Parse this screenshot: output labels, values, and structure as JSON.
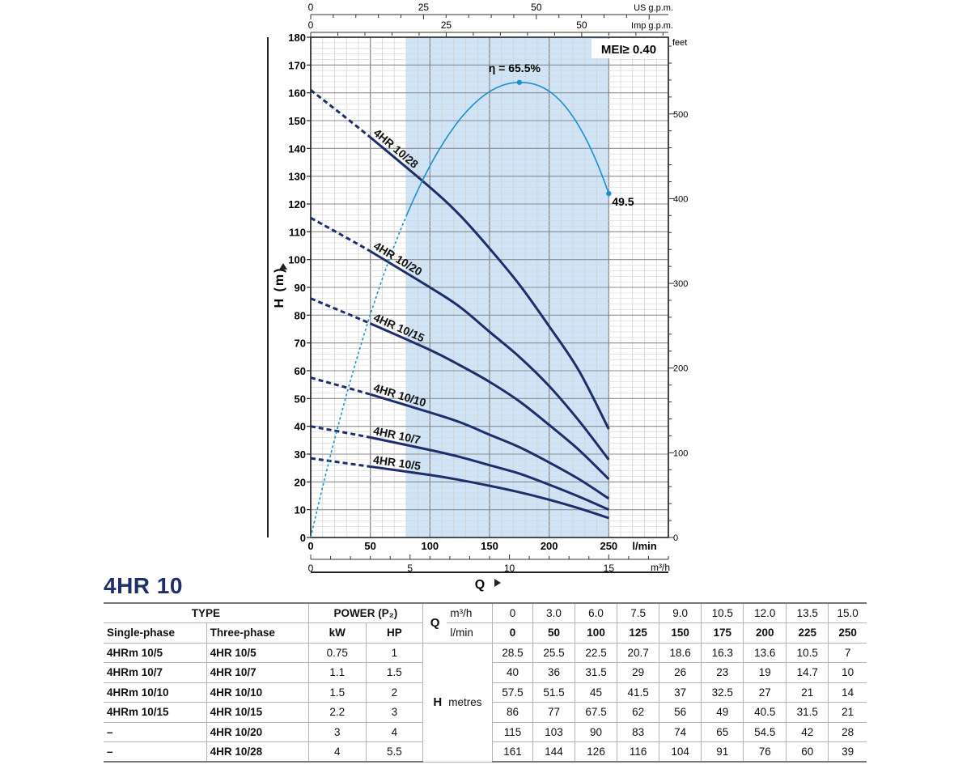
{
  "chart_data": {
    "type": "line",
    "xlabel": "Q",
    "ylabel": "H (m)",
    "x_unit": "l/min",
    "xlim": [
      0,
      300
    ],
    "ylim": [
      0,
      180
    ],
    "x_ticks": [
      0,
      50,
      100,
      150,
      200,
      250
    ],
    "y_ticks": [
      0,
      10,
      20,
      30,
      40,
      50,
      60,
      70,
      80,
      90,
      100,
      110,
      120,
      130,
      140,
      150,
      160,
      170,
      180
    ],
    "top_axis_us": {
      "label": "US g.p.m.",
      "ticks": [
        0,
        25,
        50
      ]
    },
    "top_axis_imp": {
      "label": "Imp g.p.m.",
      "ticks": [
        0,
        25,
        50
      ]
    },
    "bottom_axis_m3h": {
      "label": "m³/h",
      "ticks": [
        0,
        5,
        10,
        15
      ]
    },
    "right_axis_feet": {
      "label": "feet",
      "ticks": [
        0,
        100,
        200,
        300,
        400,
        500
      ]
    },
    "shaded_range": [
      80,
      250
    ],
    "mei_label": "MEI≥ 0.40",
    "efficiency": {
      "peak_label": "η = 65.5%",
      "end_label": "49.5",
      "peak_x": 175,
      "peak_value": 65.5,
      "end_x": 250,
      "end_value": 49.5
    },
    "curve_x": [
      0,
      50,
      100,
      125,
      150,
      175,
      200,
      225,
      250
    ],
    "series": [
      {
        "name": "4HR 10/28",
        "values": [
          161,
          144,
          126,
          116,
          104,
          91,
          76,
          60,
          39
        ]
      },
      {
        "name": "4HR 10/20",
        "values": [
          115,
          103,
          90,
          83,
          74,
          65,
          54.5,
          42,
          28
        ]
      },
      {
        "name": "4HR 10/15",
        "values": [
          86,
          77,
          67.5,
          62,
          56,
          49,
          40.5,
          31.5,
          21
        ]
      },
      {
        "name": "4HR 10/10",
        "values": [
          57.5,
          51.5,
          45,
          41.5,
          37,
          32.5,
          27,
          21,
          14
        ]
      },
      {
        "name": "4HR 10/7",
        "values": [
          40,
          36,
          31.5,
          29,
          26,
          23,
          19,
          14.7,
          10
        ]
      },
      {
        "name": "4HR 10/5",
        "values": [
          28.5,
          25.5,
          22.5,
          20.7,
          18.6,
          16.3,
          13.6,
          10.5,
          7
        ]
      }
    ]
  },
  "model_title": "4HR 10",
  "table": {
    "type_header": "TYPE",
    "power_header": "POWER (P₂)",
    "single_phase": "Single-phase",
    "three_phase": "Three-phase",
    "kw": "kW",
    "hp": "HP",
    "q_label": "Q",
    "m3h_label": "m³/h",
    "lmin_label": "l/min",
    "h_label": "H",
    "metres_label": "metres",
    "q_m3h": [
      "0",
      "3.0",
      "6.0",
      "7.5",
      "9.0",
      "10.5",
      "12.0",
      "13.5",
      "15.0"
    ],
    "q_lmin": [
      "0",
      "50",
      "100",
      "125",
      "150",
      "175",
      "200",
      "225",
      "250"
    ],
    "rows": [
      {
        "single": "4HRm 10/5",
        "three": "4HR 10/5",
        "kw": "0.75",
        "hp": "1",
        "h": [
          "28.5",
          "25.5",
          "22.5",
          "20.7",
          "18.6",
          "16.3",
          "13.6",
          "10.5",
          "7"
        ]
      },
      {
        "single": "4HRm 10/7",
        "three": "4HR 10/7",
        "kw": "1.1",
        "hp": "1.5",
        "h": [
          "40",
          "36",
          "31.5",
          "29",
          "26",
          "23",
          "19",
          "14.7",
          "10"
        ]
      },
      {
        "single": "4HRm 10/10",
        "three": "4HR 10/10",
        "kw": "1.5",
        "hp": "2",
        "h": [
          "57.5",
          "51.5",
          "45",
          "41.5",
          "37",
          "32.5",
          "27",
          "21",
          "14"
        ]
      },
      {
        "single": "4HRm 10/15",
        "three": "4HR 10/15",
        "kw": "2.2",
        "hp": "3",
        "h": [
          "86",
          "77",
          "67.5",
          "62",
          "56",
          "49",
          "40.5",
          "31.5",
          "21"
        ]
      },
      {
        "single": "–",
        "three": "4HR 10/20",
        "kw": "3",
        "hp": "4",
        "h": [
          "115",
          "103",
          "90",
          "83",
          "74",
          "65",
          "54.5",
          "42",
          "28"
        ]
      },
      {
        "single": "–",
        "three": "4HR 10/28",
        "kw": "4",
        "hp": "5.5",
        "h": [
          "161",
          "144",
          "126",
          "116",
          "104",
          "91",
          "76",
          "60",
          "39"
        ]
      }
    ]
  }
}
